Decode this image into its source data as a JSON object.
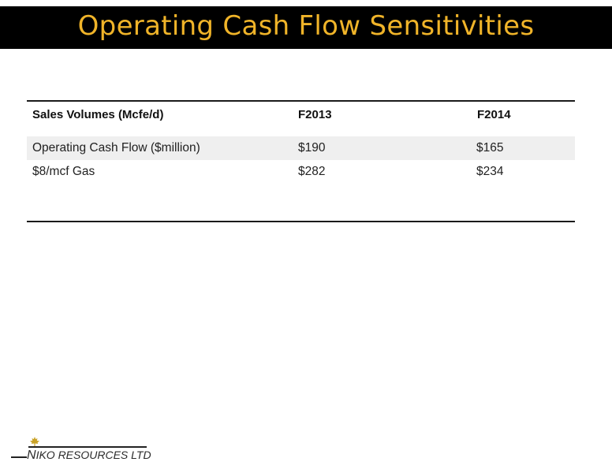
{
  "title": "Operating Cash Flow Sensitivities",
  "table": {
    "headers": [
      "Sales Volumes (Mcfe/d)",
      "F2013",
      "F2014"
    ],
    "rows": [
      [
        "Operating Cash Flow ($million)",
        "$190",
        "$165"
      ],
      [
        "$8/mcf Gas",
        "$282",
        "$234"
      ]
    ]
  },
  "logo": {
    "initial": "N",
    "text": "IKO RESOURCES LTD",
    "full": "NIKO RESOURCES LTD"
  },
  "colors": {
    "title_bar": "#000000",
    "title_text": "#F0B429",
    "logo_leaf": "#C9A227"
  }
}
